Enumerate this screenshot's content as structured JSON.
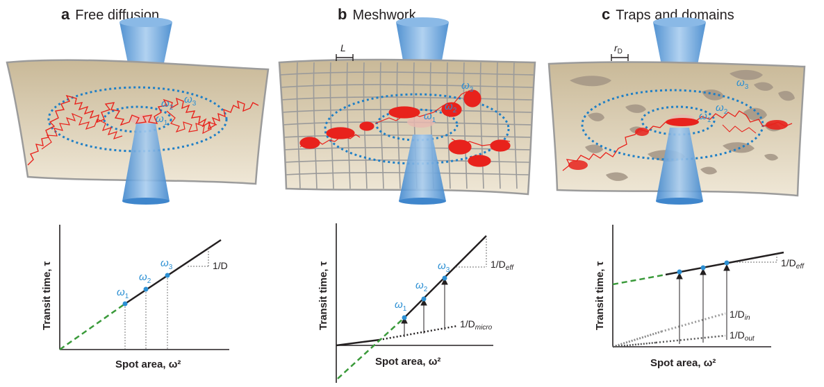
{
  "panels": [
    {
      "letter": "a",
      "title": "Free diffusion",
      "spots": [
        "ω",
        "ω",
        "ω"
      ],
      "spot_subs": [
        "1",
        "2",
        "3"
      ],
      "plot": {
        "ylabel": "Transit time, τ",
        "xlabel": "Spot area, ω²",
        "slope_label": "1/D",
        "slope_sub": ""
      }
    },
    {
      "letter": "b",
      "title": "Meshwork",
      "scale_bar": "L",
      "spots": [
        "ω",
        "ω",
        "ω"
      ],
      "spot_subs": [
        "1",
        "2",
        "3"
      ],
      "plot": {
        "ylabel": "Transit time, τ",
        "xlabel": "Spot area, ω²",
        "slope_label": "1/D",
        "slope_sub": "eff",
        "slope2_label": "1/D",
        "slope2_sub": "micro"
      }
    },
    {
      "letter": "c",
      "title": "Traps and domains",
      "scale_bar": "r",
      "scale_bar_sub": "D",
      "spots": [
        "ω",
        "ω",
        "ω"
      ],
      "spot_subs": [
        "1",
        "2",
        "3"
      ],
      "plot": {
        "ylabel": "Transit time, τ",
        "xlabel": "Spot area, ω²",
        "slope_label": "1/D",
        "slope_sub": "eff",
        "slope2_label": "1/D",
        "slope2_sub": "in",
        "slope3_label": "1/D",
        "slope3_sub": "out"
      }
    }
  ],
  "colors": {
    "membrane": "#d8cbb0",
    "membrane_edge": "#9b9b9b",
    "trajectory": "#e8221c",
    "dotted_ring": "#1f7fc6",
    "laser": "#5a9fd8",
    "extrapolation": "#3a9a3a",
    "domain": "#a39585",
    "mesh": "#9a9a9a"
  }
}
